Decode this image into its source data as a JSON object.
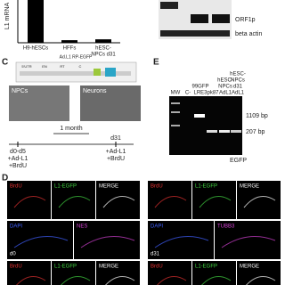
{
  "panel_b": {
    "y_label": "L1 mRNA",
    "categories": [
      [
        "H9-hESCs"
      ],
      [
        "HFFs"
      ],
      [
        "hESC-",
        "NPCs d31"
      ]
    ],
    "values": [
      1,
      0.06,
      0.08
    ]
  },
  "panel_blot": {
    "bands": [
      "ORF1p",
      "beta actin"
    ]
  },
  "panel_c": {
    "label": "C",
    "construct": "Ad.L1 RP-EGFP",
    "construct_parts": [
      "5'UTR",
      "EN",
      "RT",
      "C"
    ],
    "images": [
      "NPCs",
      "Neurons"
    ],
    "interval": "1 month",
    "timepoints": [
      "d0-d5",
      "d31"
    ],
    "treatments": [
      [
        "+Ad-L1",
        "+BrdU"
      ],
      [
        "+Ad-L1",
        "+BrdU"
      ]
    ]
  },
  "panel_e": {
    "label": "E",
    "lanes": [
      [
        "MW"
      ],
      [
        "C-"
      ],
      [
        "99GFP",
        "LRE3"
      ],
      [
        "pk87"
      ],
      [
        "hESC-",
        "NPCs",
        "AdL1"
      ],
      [
        "hESC-",
        "NPCs",
        "d31",
        "AdL1"
      ]
    ],
    "sizes": [
      "1109 bp",
      "207 bp"
    ],
    "product": "EGFP"
  },
  "panel_d": {
    "label": "D",
    "groups": [
      {
        "stage": "d0",
        "rows": [
          [
            "BrdU",
            "L1-EGFP",
            "MERGE"
          ],
          [
            "DAPI",
            "NES"
          ],
          [
            "BrdU",
            "L1-EGFP",
            "MERGE"
          ]
        ]
      },
      {
        "stage": "d31",
        "rows": [
          [
            "BrdU",
            "L1-EGFP",
            "MERGE"
          ],
          [
            "DAPI",
            "TUBB3"
          ],
          [
            "BrdU",
            "L1-EGFP",
            "MERGE"
          ]
        ]
      }
    ]
  }
}
